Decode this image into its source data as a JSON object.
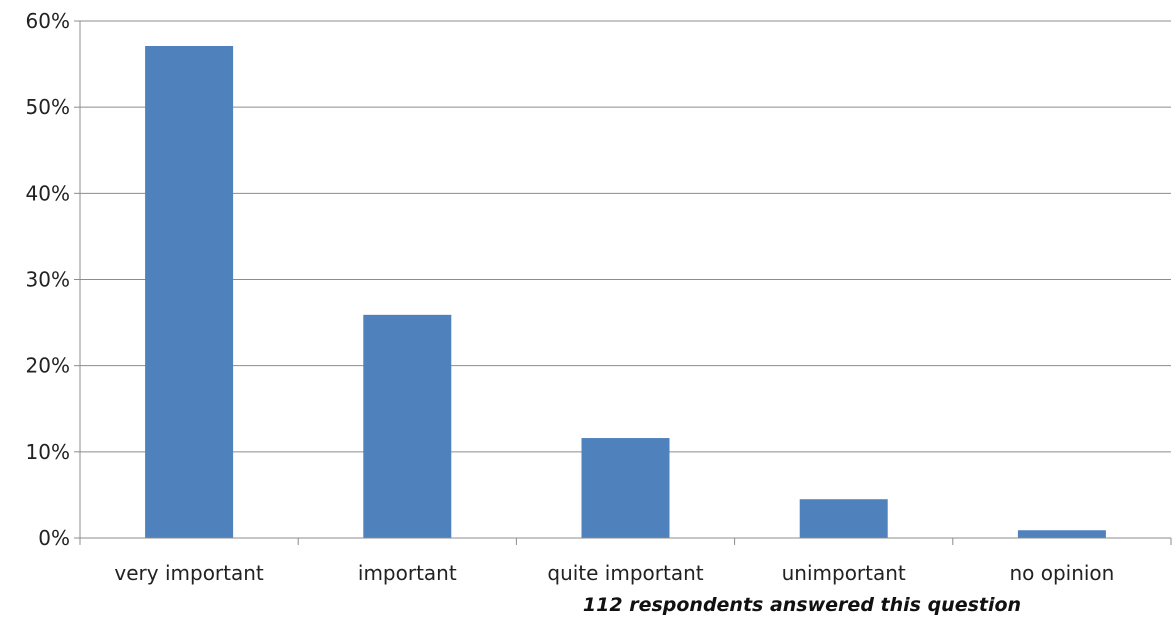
{
  "chart_data": {
    "type": "bar",
    "categories": [
      "very important",
      "important",
      "quite important",
      "unimportant",
      "no opinion"
    ],
    "values": [
      57.1,
      25.9,
      11.6,
      4.5,
      0.9
    ],
    "ylim": [
      0,
      60
    ],
    "yticks": [
      0,
      10,
      20,
      30,
      40,
      50,
      60
    ],
    "ytick_labels": [
      "0%",
      "10%",
      "20%",
      "30%",
      "40%",
      "50%",
      "60%"
    ],
    "grid": true,
    "bar_color": "#4f81bd",
    "annotation": "112 respondents answered this question"
  }
}
